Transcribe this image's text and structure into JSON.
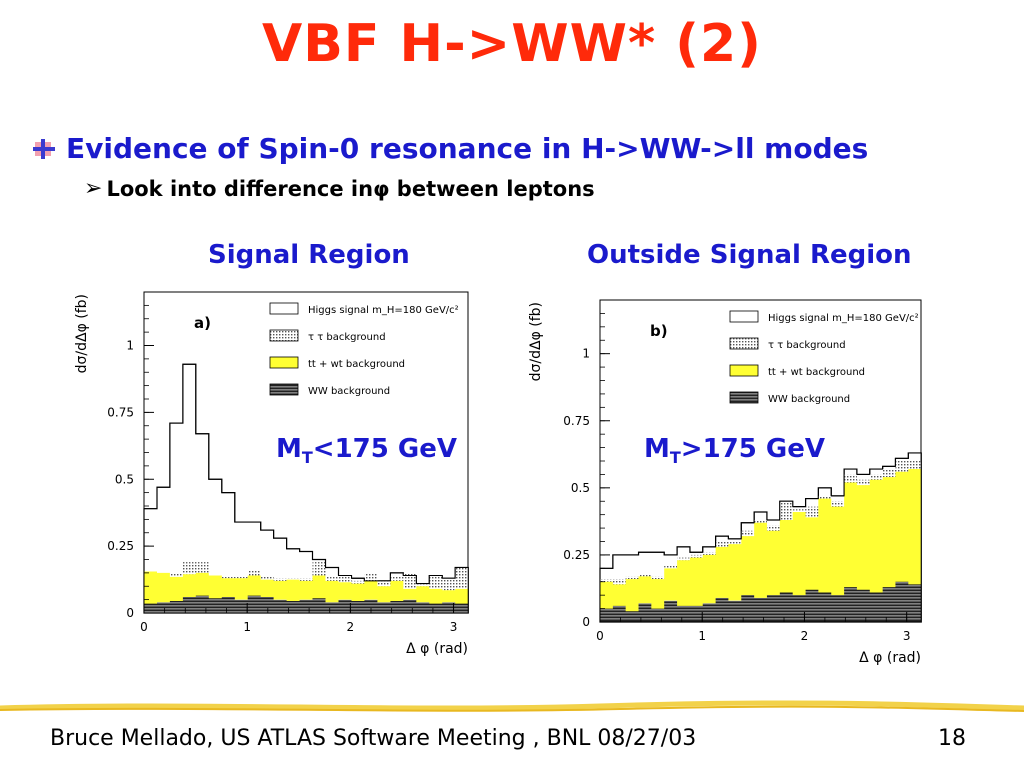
{
  "slide": {
    "title": "VBF H->WW* (2)",
    "bullet1": "Evidence of Spin-0 resonance in H->WW->ll modes",
    "bullet2_pre": "Look into difference in ",
    "bullet2_phi": "φ",
    "bullet2_post": " between leptons",
    "region_left": "Signal Region",
    "region_right": "Outside Signal Region",
    "cut_left_base": "M",
    "cut_left_sub": "T",
    "cut_left_rest": "<175 GeV",
    "cut_right_base": "M",
    "cut_right_sub": "T",
    "cut_right_rest": ">175 GeV",
    "footer_left": "Bruce Mellado, US ATLAS Software Meeting , BNL 08/27/03",
    "footer_right": "18",
    "colors": {
      "title": "#ff2a0a",
      "accent": "#1a1acc",
      "yellow": "#ffff33"
    }
  },
  "chart_data": [
    {
      "type": "area",
      "panel_label": "a)",
      "xlabel": "Δ φ (rad)",
      "ylabel": "dσ/dΔφ (fb)",
      "xlim": [
        0,
        3.14
      ],
      "ylim": [
        0,
        1.2
      ],
      "x_ticks": [
        "0",
        "1",
        "2",
        "3"
      ],
      "y_ticks": [
        "0",
        "0.25",
        "0.5",
        "0.75",
        "1"
      ],
      "legend": [
        "Higgs signal m_H=180 GeV/c²",
        "τ τ background",
        "tt + wt background",
        "WW background"
      ],
      "legend_position": "top-right",
      "bin_edges": [
        0,
        0.126,
        0.251,
        0.377,
        0.502,
        0.628,
        0.754,
        0.88,
        1.005,
        1.131,
        1.256,
        1.382,
        1.508,
        1.633,
        1.759,
        1.885,
        2.011,
        2.136,
        2.262,
        2.388,
        2.513,
        2.639,
        2.765,
        2.89,
        3.016,
        3.142
      ],
      "series": [
        {
          "name": "WW background",
          "values": [
            0.035,
            0.04,
            0.045,
            0.06,
            0.065,
            0.055,
            0.06,
            0.05,
            0.065,
            0.06,
            0.05,
            0.045,
            0.05,
            0.055,
            0.04,
            0.05,
            0.045,
            0.05,
            0.04,
            0.045,
            0.05,
            0.04,
            0.035,
            0.04,
            0.035
          ]
        },
        {
          "name": "tt + wt background",
          "values": [
            0.155,
            0.15,
            0.135,
            0.145,
            0.15,
            0.14,
            0.13,
            0.13,
            0.14,
            0.125,
            0.12,
            0.125,
            0.12,
            0.14,
            0.12,
            0.115,
            0.11,
            0.12,
            0.1,
            0.12,
            0.09,
            0.1,
            0.09,
            0.085,
            0.09
          ]
        },
        {
          "name": "τ τ background",
          "values": [
            0.155,
            0.15,
            0.15,
            0.19,
            0.19,
            0.14,
            0.14,
            0.14,
            0.16,
            0.14,
            0.13,
            0.13,
            0.13,
            0.19,
            0.14,
            0.14,
            0.12,
            0.15,
            0.12,
            0.14,
            0.15,
            0.11,
            0.14,
            0.13,
            0.17
          ]
        },
        {
          "name": "Higgs signal m_H=180 GeV/c²",
          "values": [
            0.39,
            0.47,
            0.71,
            0.93,
            0.67,
            0.5,
            0.45,
            0.34,
            0.34,
            0.31,
            0.28,
            0.24,
            0.23,
            0.2,
            0.17,
            0.14,
            0.13,
            0.12,
            0.12,
            0.15,
            0.14,
            0.11,
            0.14,
            0.13,
            0.17
          ]
        }
      ],
      "total": [
        0.39,
        0.47,
        0.71,
        0.93,
        0.67,
        0.5,
        0.45,
        0.34,
        0.34,
        0.31,
        0.28,
        0.24,
        0.23,
        0.2,
        0.17,
        0.14,
        0.13,
        0.12,
        0.12,
        0.15,
        0.14,
        0.11,
        0.14,
        0.13,
        0.17
      ]
    },
    {
      "type": "area",
      "panel_label": "b)",
      "xlabel": "Δ φ (rad)",
      "ylabel": "dσ/dΔφ (fb)",
      "xlim": [
        0,
        3.14
      ],
      "ylim": [
        0,
        1.2
      ],
      "x_ticks": [
        "0",
        "1",
        "2",
        "3"
      ],
      "y_ticks": [
        "0",
        "0.25",
        "0.5",
        "0.75",
        "1"
      ],
      "legend": [
        "Higgs signal m_H=180 GeV/c²",
        "τ τ background",
        "tt + wt background",
        "WW background"
      ],
      "legend_position": "top-right",
      "bin_edges": [
        0,
        0.126,
        0.251,
        0.377,
        0.502,
        0.628,
        0.754,
        0.88,
        1.005,
        1.131,
        1.256,
        1.382,
        1.508,
        1.633,
        1.759,
        1.885,
        2.011,
        2.136,
        2.262,
        2.388,
        2.513,
        2.639,
        2.765,
        2.89,
        3.016,
        3.142
      ],
      "series": [
        {
          "name": "WW background",
          "values": [
            0.05,
            0.06,
            0.04,
            0.07,
            0.05,
            0.08,
            0.06,
            0.06,
            0.07,
            0.09,
            0.08,
            0.1,
            0.09,
            0.1,
            0.11,
            0.1,
            0.12,
            0.11,
            0.1,
            0.13,
            0.12,
            0.11,
            0.13,
            0.15,
            0.14
          ]
        },
        {
          "name": "tt + wt background",
          "values": [
            0.15,
            0.14,
            0.16,
            0.17,
            0.16,
            0.2,
            0.23,
            0.24,
            0.25,
            0.28,
            0.29,
            0.32,
            0.37,
            0.34,
            0.38,
            0.41,
            0.39,
            0.46,
            0.43,
            0.52,
            0.51,
            0.53,
            0.54,
            0.56,
            0.57
          ]
        },
        {
          "name": "τ τ background",
          "values": [
            0.16,
            0.16,
            0.17,
            0.18,
            0.17,
            0.21,
            0.24,
            0.25,
            0.26,
            0.3,
            0.3,
            0.34,
            0.38,
            0.36,
            0.45,
            0.42,
            0.43,
            0.47,
            0.45,
            0.55,
            0.53,
            0.55,
            0.57,
            0.6,
            0.6
          ]
        },
        {
          "name": "Higgs signal m_H=180 GeV/c²",
          "values": [
            0.2,
            0.25,
            0.25,
            0.26,
            0.26,
            0.25,
            0.28,
            0.26,
            0.28,
            0.32,
            0.31,
            0.37,
            0.41,
            0.38,
            0.45,
            0.43,
            0.46,
            0.5,
            0.47,
            0.57,
            0.55,
            0.57,
            0.58,
            0.61,
            0.63
          ]
        }
      ],
      "total": [
        0.2,
        0.25,
        0.25,
        0.26,
        0.26,
        0.25,
        0.28,
        0.26,
        0.28,
        0.32,
        0.31,
        0.37,
        0.41,
        0.38,
        0.45,
        0.43,
        0.46,
        0.5,
        0.47,
        0.57,
        0.55,
        0.57,
        0.58,
        0.61,
        0.63
      ]
    }
  ]
}
